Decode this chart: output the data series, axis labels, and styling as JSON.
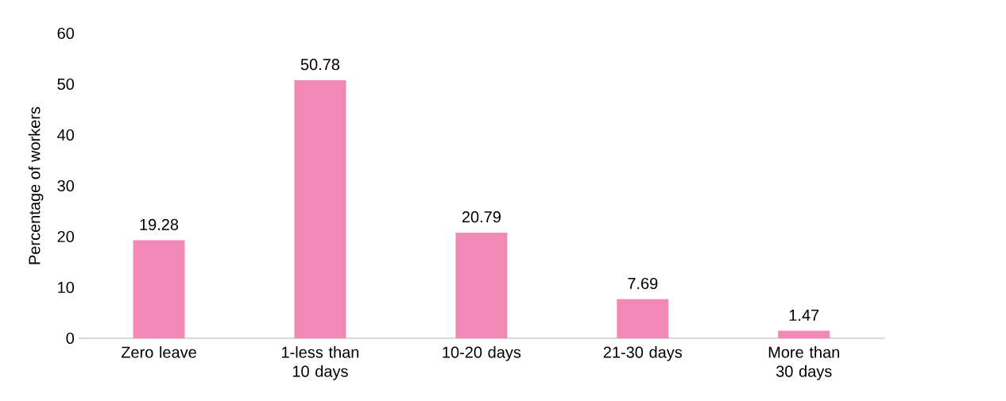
{
  "chart_data": {
    "type": "bar",
    "ylabel": "Percentage of workers",
    "categories": [
      "Zero leave",
      "1-less than 10 days",
      "10-20 days",
      "21-30 days",
      "More than 30 days"
    ],
    "values": [
      19.28,
      50.78,
      20.79,
      7.69,
      1.47
    ],
    "color": "#f288b6",
    "ylim": [
      0,
      60
    ],
    "yticks": [
      0,
      10,
      20,
      30,
      40,
      50,
      60
    ],
    "data_labels": true,
    "grid": false
  }
}
